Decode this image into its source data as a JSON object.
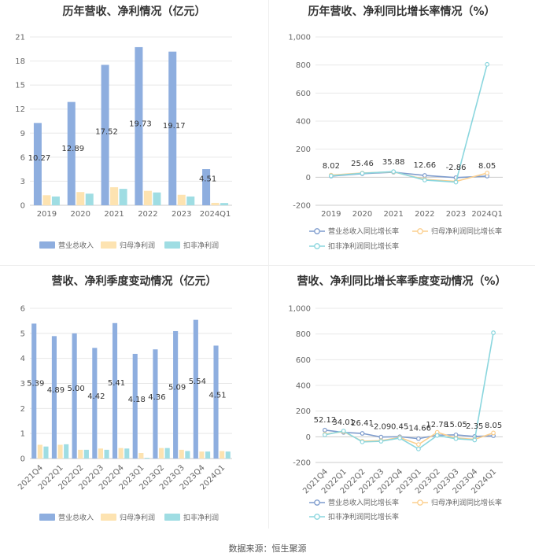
{
  "source": "数据来源：恒生聚源",
  "chart_data": [
    {
      "type": "bar",
      "title": "历年营收、净利情况（亿元）",
      "categories": [
        "2019",
        "2020",
        "2021",
        "2022",
        "2023",
        "2024Q1"
      ],
      "series": [
        {
          "name": "营业总收入",
          "values": [
            10.27,
            12.89,
            17.52,
            19.73,
            19.17,
            4.51
          ],
          "color": "#8eaedf",
          "labeled": true
        },
        {
          "name": "归母净利润",
          "values": [
            1.25,
            1.65,
            2.25,
            1.8,
            1.3,
            0.3
          ],
          "color": "#fde3b1",
          "labeled": false
        },
        {
          "name": "扣非净利润",
          "values": [
            1.1,
            1.45,
            2.05,
            1.6,
            1.1,
            0.28
          ],
          "color": "#9fdde3",
          "labeled": false
        }
      ],
      "ylim": [
        0,
        21
      ],
      "yticks": [
        "0",
        "3",
        "6",
        "9",
        "12",
        "15",
        "18",
        "21"
      ],
      "grid": true,
      "legend": "bottom"
    },
    {
      "type": "line",
      "title": "历年营收、净利同比增长率情况（%）",
      "categories": [
        "2019",
        "2020",
        "2021",
        "2022",
        "2023",
        "2024Q1"
      ],
      "series": [
        {
          "name": "营业总收入同比增长率",
          "values": [
            8.02,
            25.46,
            35.88,
            12.66,
            -2.86,
            8.05
          ],
          "color": "#7e9ccd",
          "labeled": true
        },
        {
          "name": "归母净利润同比增长率",
          "values": [
            15,
            30,
            38,
            -15,
            -30,
            30
          ],
          "color": "#fccf8e",
          "labeled": false
        },
        {
          "name": "扣非净利润同比增长率",
          "values": [
            10,
            28,
            40,
            -20,
            -35,
            805
          ],
          "color": "#8ad6de",
          "labeled": false
        }
      ],
      "ylim": [
        -200,
        1000
      ],
      "yticks": [
        "-200",
        "0",
        "200",
        "400",
        "600",
        "800",
        "1,000"
      ],
      "grid": true,
      "legend": "bottom"
    },
    {
      "type": "bar",
      "title": "营收、净利季度变动情况（亿元）",
      "categories": [
        "2021Q4",
        "2022Q1",
        "2022Q2",
        "2022Q3",
        "2022Q4",
        "2023Q1",
        "2023Q2",
        "2023Q3",
        "2023Q4",
        "2024Q1"
      ],
      "series": [
        {
          "name": "营业总收入",
          "values": [
            5.39,
            4.89,
            5.0,
            4.42,
            5.41,
            4.18,
            4.36,
            5.09,
            5.54,
            4.51
          ],
          "color": "#8eaedf",
          "labeled": true
        },
        {
          "name": "归母净利润",
          "values": [
            0.55,
            0.55,
            0.35,
            0.4,
            0.42,
            0.22,
            0.42,
            0.35,
            0.28,
            0.3
          ],
          "color": "#fde3b1",
          "labeled": false
        },
        {
          "name": "扣非净利润",
          "values": [
            0.48,
            0.57,
            0.35,
            0.35,
            0.4,
            0.03,
            0.42,
            0.3,
            0.28,
            0.28
          ],
          "color": "#9fdde3",
          "labeled": false
        }
      ],
      "ylim": [
        0,
        6
      ],
      "yticks": [
        "0",
        "1",
        "2",
        "3",
        "4",
        "5",
        "6"
      ],
      "grid": true,
      "legend": "bottom"
    },
    {
      "type": "line",
      "title": "营收、净利同比增长率季度变动情况（%）",
      "categories": [
        "2021Q4",
        "2022Q1",
        "2022Q2",
        "2022Q3",
        "2022Q4",
        "2023Q1",
        "2023Q2",
        "2023Q3",
        "2023Q4",
        "2024Q1"
      ],
      "series": [
        {
          "name": "营业总收入同比增长率",
          "values": [
            52.12,
            34.01,
            26.41,
            -2.09,
            0.45,
            -14.66,
            12.78,
            15.05,
            2.35,
            8.05
          ],
          "color": "#7e9ccd",
          "labeled": true
        },
        {
          "name": "归母净利润同比增长率",
          "values": [
            20,
            40,
            -35,
            -30,
            -5,
            -60,
            35,
            -10,
            -20,
            30
          ],
          "color": "#fccf8e",
          "labeled": false
        },
        {
          "name": "扣非净利润同比增长率",
          "values": [
            15,
            45,
            -40,
            -35,
            -10,
            -95,
            10,
            -15,
            -25,
            810
          ],
          "color": "#8ad6de",
          "labeled": false
        }
      ],
      "ylim": [
        -200,
        1000
      ],
      "yticks": [
        "-200",
        "0",
        "200",
        "400",
        "600",
        "800",
        "1,000"
      ],
      "grid": true,
      "legend": "bottom"
    }
  ]
}
